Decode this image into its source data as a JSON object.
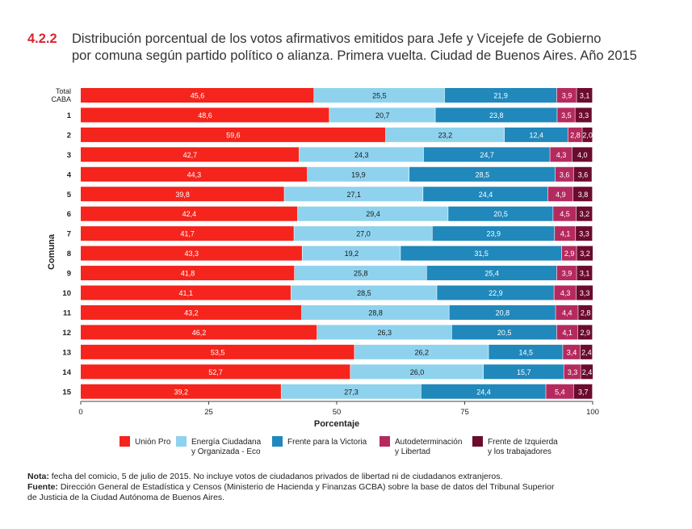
{
  "header": {
    "number": "4.2.2",
    "title_line1": "Distribución porcentual de los votos afirmativos emitidos para Jefe y Vicejefe de Gobierno",
    "title_line2": "por comuna según partido político o alianza. Primera vuelta. Ciudad de Buenos Aires. Año 2015"
  },
  "colors": {
    "union_pro": "#f5241c",
    "eco": "#8fd2ee",
    "fpv": "#2088bb",
    "autodeterminacion": "#b52a5e",
    "fit": "#6b0b2e"
  },
  "chart_data": {
    "type": "bar",
    "orientation": "horizontal",
    "stacked": true,
    "title": "Distribución porcentual de los votos afirmativos emitidos para Jefe y Vicejefe de Gobierno por comuna según partido político o alianza. Primera vuelta. Ciudad de Buenos Aires. Año 2015",
    "xlabel": "Porcentaje",
    "ylabel": "Comuna",
    "xlim": [
      0,
      100
    ],
    "xticks": [
      0,
      25,
      50,
      75,
      100
    ],
    "categories": [
      "Total CABA",
      "1",
      "2",
      "3",
      "4",
      "5",
      "6",
      "7",
      "8",
      "9",
      "10",
      "11",
      "12",
      "13",
      "14",
      "15"
    ],
    "series": [
      {
        "name": "Unión Pro",
        "values": [
          45.6,
          48.6,
          59.6,
          42.7,
          44.3,
          39.8,
          42.4,
          41.7,
          43.3,
          41.8,
          41.1,
          43.2,
          46.2,
          53.5,
          52.7,
          39.2
        ]
      },
      {
        "name": "Energía Ciudadana y Organizada - Eco",
        "values": [
          25.5,
          20.7,
          23.2,
          24.3,
          19.9,
          27.1,
          29.4,
          27.0,
          19.2,
          25.8,
          28.5,
          28.8,
          26.3,
          26.2,
          26.0,
          27.3
        ]
      },
      {
        "name": "Frente para la Victoria",
        "values": [
          21.9,
          23.8,
          12.4,
          24.7,
          28.5,
          24.4,
          20.5,
          23.9,
          31.5,
          25.4,
          22.9,
          20.8,
          20.5,
          14.5,
          15.7,
          24.4
        ]
      },
      {
        "name": "Autodeterminación y Libertad",
        "values": [
          3.9,
          3.5,
          2.8,
          4.3,
          3.6,
          4.9,
          4.5,
          4.1,
          2.9,
          3.9,
          4.3,
          4.4,
          4.1,
          3.4,
          3.3,
          5.4
        ]
      },
      {
        "name": "Frente de Izquierda y los trabajadores",
        "values": [
          3.1,
          3.3,
          2.0,
          4.0,
          3.6,
          3.8,
          3.2,
          3.3,
          3.2,
          3.1,
          3.3,
          2.8,
          2.9,
          2.4,
          2.4,
          3.7
        ]
      }
    ],
    "legend": [
      {
        "line1": "Unión Pro",
        "line2": "",
        "color_key": "union_pro"
      },
      {
        "line1": "Energía Ciudadana",
        "line2": "y Organizada - Eco",
        "color_key": "eco"
      },
      {
        "line1": "Frente para la Victoria",
        "line2": "",
        "color_key": "fpv"
      },
      {
        "line1": "Autodeterminación",
        "line2": "y Libertad",
        "color_key": "autodeterminacion"
      },
      {
        "line1": "Frente de Izquierda",
        "line2": "y los trabajadores",
        "color_key": "fit"
      }
    ],
    "legend_position": "bottom"
  },
  "notes": {
    "nota_label": "Nota:",
    "nota_text": "fecha del comicio, 5 de julio de 2015. No incluye votos de ciudadanos privados de libertad ni de ciudadanos extranjeros.",
    "fuente_label": "Fuente:",
    "fuente_text_line1": "Dirección General de Estadística y Censos (Ministerio de Hacienda y Finanzas GCBA) sobre la base de datos del Tribunal Superior",
    "fuente_text_line2": "de Justicia de la Ciudad Autónoma de Buenos Aires."
  }
}
